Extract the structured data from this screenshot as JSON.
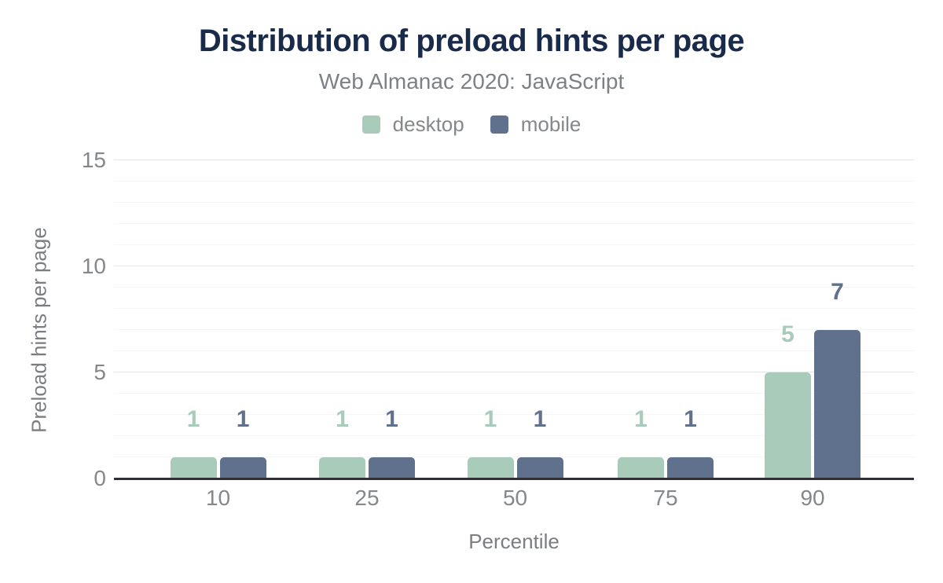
{
  "chart_data": {
    "type": "bar",
    "title": "Distribution of preload hints per page",
    "subtitle": "Web Almanac 2020: JavaScript",
    "categories": [
      "10",
      "25",
      "50",
      "75",
      "90"
    ],
    "series": [
      {
        "name": "desktop",
        "color": "#a9cbb9",
        "values": [
          1,
          1,
          1,
          1,
          5
        ]
      },
      {
        "name": "mobile",
        "color": "#5f718d",
        "values": [
          1,
          1,
          1,
          1,
          7
        ]
      }
    ],
    "xlabel": "Percentile",
    "ylabel": "Preload hints per page",
    "ylim": [
      0,
      15
    ],
    "yticks": [
      0,
      5,
      10,
      15
    ],
    "y_minor_step": 1,
    "y_major_step": 5,
    "grid": "horizontal",
    "legend_position": "top",
    "value_labels": true
  },
  "colors": {
    "title": "#1a2a49",
    "axis_text": "#85888b",
    "axis_line": "#303134",
    "desktop": "#a9cbb9",
    "mobile": "#5f718d"
  }
}
